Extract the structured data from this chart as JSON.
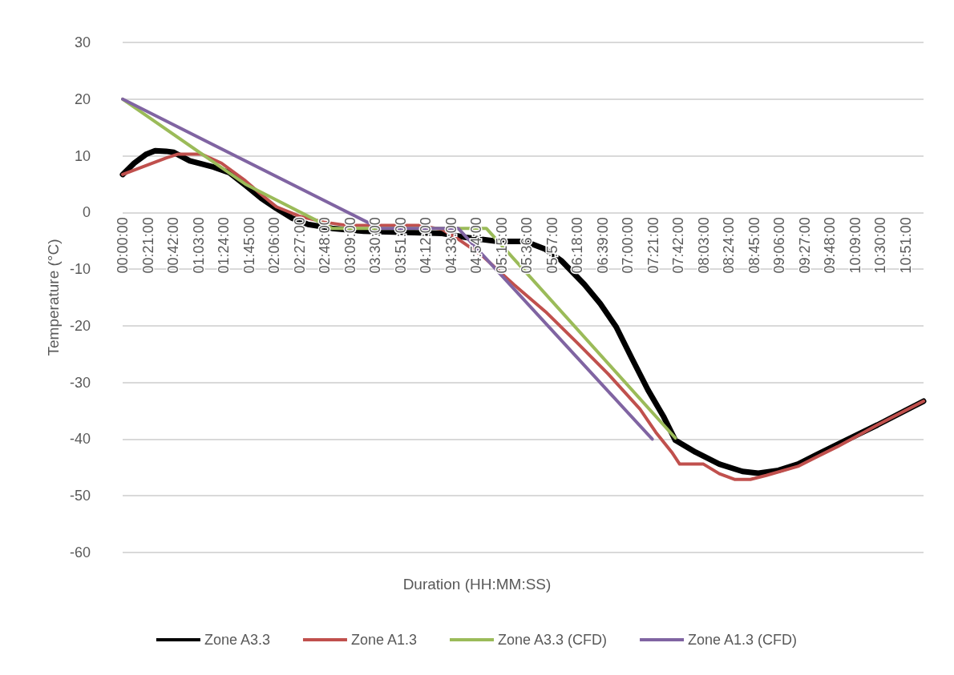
{
  "chart_data": {
    "type": "line",
    "xlabel": "Duration (HH:MM:SS)",
    "ylabel": "Temperature (°C)",
    "xlim": [
      0,
      11.1
    ],
    "ylim": [
      -60,
      30
    ],
    "yticks": [
      -60,
      -50,
      -40,
      -30,
      -20,
      -10,
      0,
      10,
      20,
      30
    ],
    "xticks": [
      {
        "value": 0,
        "label": "00:00:00"
      },
      {
        "value": 0.35,
        "label": "00:21:00"
      },
      {
        "value": 0.7,
        "label": "00:42:00"
      },
      {
        "value": 1.05,
        "label": "01:03:00"
      },
      {
        "value": 1.4,
        "label": "01:24:00"
      },
      {
        "value": 1.75,
        "label": "01:45:00"
      },
      {
        "value": 2.1,
        "label": "02:06:00"
      },
      {
        "value": 2.45,
        "label": "02:27:00"
      },
      {
        "value": 2.8,
        "label": "02:48:00"
      },
      {
        "value": 3.15,
        "label": "03:09:00"
      },
      {
        "value": 3.5,
        "label": "03:30:00"
      },
      {
        "value": 3.85,
        "label": "03:51:00"
      },
      {
        "value": 4.2,
        "label": "04:12:00"
      },
      {
        "value": 4.55,
        "label": "04:33:00"
      },
      {
        "value": 4.9,
        "label": "04:54:00"
      },
      {
        "value": 5.25,
        "label": "05:15:00"
      },
      {
        "value": 5.6,
        "label": "05:36:00"
      },
      {
        "value": 5.95,
        "label": "05:57:00"
      },
      {
        "value": 6.3,
        "label": "06:18:00"
      },
      {
        "value": 6.65,
        "label": "06:39:00"
      },
      {
        "value": 7,
        "label": "07:00:00"
      },
      {
        "value": 7.35,
        "label": "07:21:00"
      },
      {
        "value": 7.7,
        "label": "07:42:00"
      },
      {
        "value": 8.05,
        "label": "08:03:00"
      },
      {
        "value": 8.4,
        "label": "08:24:00"
      },
      {
        "value": 8.75,
        "label": "08:45:00"
      },
      {
        "value": 9.1,
        "label": "09:06:00"
      },
      {
        "value": 9.45,
        "label": "09:27:00"
      },
      {
        "value": 9.8,
        "label": "09:48:00"
      },
      {
        "value": 10.15,
        "label": "10:09:00"
      },
      {
        "value": 10.5,
        "label": "10:30:00"
      },
      {
        "value": 10.85,
        "label": "10:51:00"
      }
    ],
    "grid": "y",
    "legend": "bottom",
    "marker": "none",
    "line_style": "solid",
    "series": [
      {
        "name": "Zone A3.3",
        "color": "#000000",
        "x": [
          0,
          0.16,
          0.33,
          0.45,
          0.6,
          0.71,
          0.93,
          1.26,
          1.48,
          1.7,
          1.92,
          2.13,
          2.35,
          2.57,
          2.9,
          3.34,
          4.43,
          4.76,
          5.2,
          5.58,
          5.86,
          6.08,
          6.4,
          6.62,
          6.84,
          7.06,
          7.28,
          7.5,
          7.66,
          7.94,
          8.27,
          8.59,
          8.81,
          9.09,
          9.36,
          9.91,
          10.46,
          11.1
        ],
        "values": [
          6.7,
          8.7,
          10.3,
          10.9,
          10.8,
          10.6,
          9.1,
          8.0,
          7.0,
          4.8,
          2.5,
          0.7,
          -1.0,
          -2.1,
          -2.8,
          -3.3,
          -3.7,
          -4.4,
          -5.1,
          -5.1,
          -6.5,
          -8.5,
          -12.7,
          -16.1,
          -20.2,
          -25.8,
          -31.3,
          -36.1,
          -40.2,
          -42.3,
          -44.4,
          -45.7,
          -46.0,
          -45.5,
          -44.4,
          -40.9,
          -37.5,
          -33.3
        ]
      },
      {
        "name": "Zone A1.3",
        "color": "#c0504d",
        "x": [
          0,
          0.27,
          0.6,
          0.77,
          1.09,
          1.37,
          1.7,
          1.92,
          2.13,
          2.46,
          2.79,
          3.12,
          4.11,
          4.43,
          4.65,
          4.98,
          5.42,
          5.86,
          6.3,
          6.73,
          7.17,
          7.39,
          7.61,
          7.72,
          8.05,
          8.27,
          8.48,
          8.7,
          8.92,
          9.36,
          9.91,
          10.46,
          11.1
        ],
        "values": [
          6.7,
          8.0,
          9.6,
          10.3,
          10.3,
          8.7,
          5.6,
          3.2,
          1.0,
          -0.7,
          -1.7,
          -2.3,
          -2.3,
          -3.0,
          -4.7,
          -7.6,
          -12.7,
          -17.5,
          -23.0,
          -28.5,
          -34.7,
          -38.8,
          -42.3,
          -44.4,
          -44.4,
          -46.1,
          -47.1,
          -47.1,
          -46.4,
          -44.8,
          -41.3,
          -37.5,
          -33.3
        ]
      },
      {
        "name": "Zone A3.3 (CFD)",
        "color": "#9bbb59",
        "x": [
          0,
          1.7,
          2.9,
          5.04,
          7.66
        ],
        "values": [
          20.0,
          5.0,
          -2.8,
          -2.8,
          -39.8
        ]
      },
      {
        "name": "Zone A1.3 (CFD)",
        "color": "#8064a2",
        "x": [
          0,
          3.56,
          4.65,
          7.34
        ],
        "values": [
          20.0,
          -2.8,
          -2.8,
          -40.0
        ]
      }
    ]
  }
}
